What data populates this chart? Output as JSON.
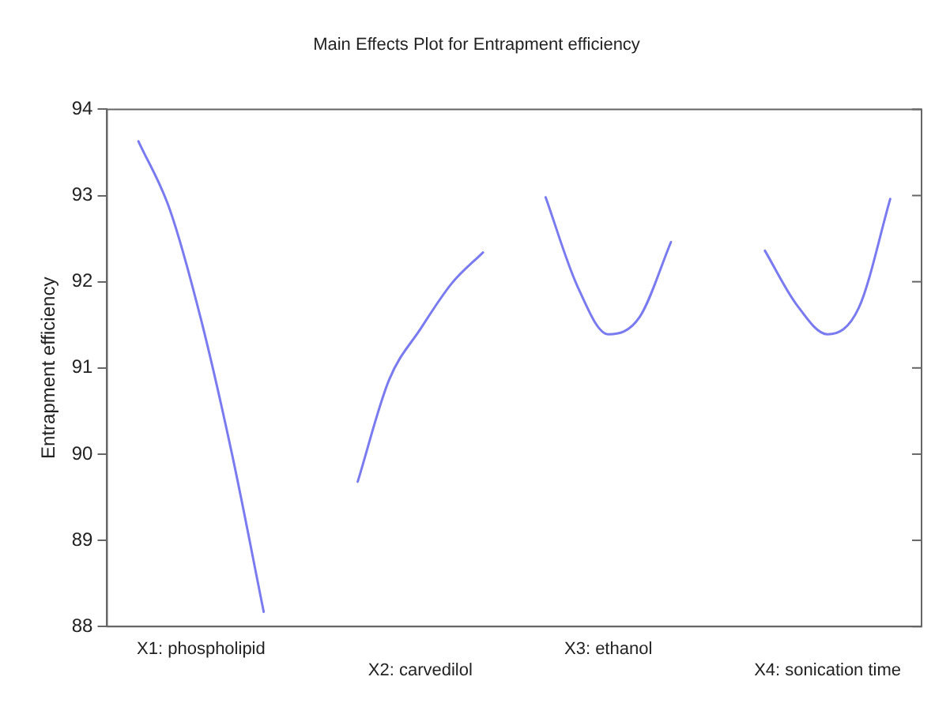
{
  "chart_data": {
    "type": "line",
    "title": "Main Effects Plot for Entrapment efficiency",
    "ylabel": "Entrapment efficiency",
    "categories": [
      null,
      null,
      null,
      "X1: phospholipid",
      null,
      null,
      null,
      null,
      null,
      null,
      "X2: carvedilol",
      null,
      null,
      null,
      null,
      null,
      "X3: ethanol",
      null,
      null,
      null,
      null,
      null,
      null,
      "X4: sonication time",
      null,
      null,
      null
    ],
    "series": [
      {
        "color": "#7b7bf0",
        "values": [
          null,
          93.63,
          92.84,
          91.56,
          89.98,
          88.17,
          null,
          null,
          null,
          null,
          null,
          null,
          null,
          null,
          null,
          null,
          null,
          null,
          null,
          null,
          null,
          null,
          null,
          null,
          null,
          null,
          null
        ]
      },
      {
        "color": "#7b7bf0",
        "values": [
          null,
          null,
          null,
          null,
          null,
          null,
          null,
          null,
          89.68,
          90.86,
          91.45,
          91.98,
          92.34,
          null,
          null,
          null,
          null,
          null,
          null,
          null,
          null,
          null,
          null,
          null,
          null,
          null,
          null
        ]
      },
      {
        "color": "#7b7bf0",
        "values": [
          null,
          null,
          null,
          null,
          null,
          null,
          null,
          null,
          null,
          null,
          null,
          null,
          null,
          null,
          92.98,
          91.96,
          91.39,
          91.59,
          92.46,
          null,
          null,
          null,
          null,
          null,
          null,
          null,
          null
        ]
      },
      {
        "color": "#7b7bf0",
        "values": [
          null,
          null,
          null,
          null,
          null,
          null,
          null,
          null,
          null,
          null,
          null,
          null,
          null,
          null,
          null,
          null,
          null,
          null,
          null,
          null,
          null,
          92.36,
          91.74,
          91.39,
          91.7,
          92.96,
          null
        ]
      }
    ],
    "ylim": [
      88,
      94
    ],
    "yticks": [
      88,
      89,
      90,
      91,
      92,
      93,
      94
    ],
    "grid": false,
    "legend": false,
    "marker": "none",
    "line_style": "solid"
  }
}
